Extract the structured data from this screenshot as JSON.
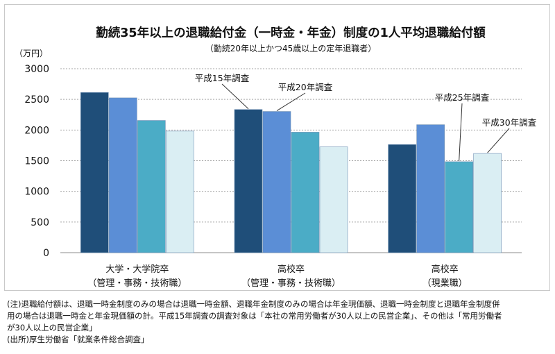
{
  "chart_data": {
    "type": "bar",
    "title": "勤続35年以上の退職給付金（一時金・年金）制度の1人平均退職給付額",
    "subtitle": "（勤続20年以上かつ45歳以上の定年退職者）",
    "unit_label": "（万円）",
    "ylim": [
      0,
      3000
    ],
    "yticks": [
      0,
      500,
      1000,
      1500,
      2000,
      2500,
      3000
    ],
    "grid": true,
    "categories": [
      [
        "大学・大学院卒",
        "（管理・事務・技術職）"
      ],
      [
        "高校卒",
        "（管理・事務・技術職）"
      ],
      [
        "高校卒",
        "（現業職）"
      ]
    ],
    "series": [
      {
        "name": "平成15年調査",
        "color": "#1f4e79",
        "values": [
          2612,
          2335,
          1763
        ]
      },
      {
        "name": "平成20年調査",
        "color": "#5b8ed6",
        "values": [
          2525,
          2303,
          2087
        ]
      },
      {
        "name": "平成25年調査",
        "color": "#4bacc6",
        "values": [
          2156,
          1965,
          1484
        ]
      },
      {
        "name": "平成30年調査",
        "color": "#daeef3",
        "values": [
          1983,
          1726,
          1618
        ]
      }
    ]
  },
  "notes": {
    "line1": "(注)退職給付額は、退職一時金制度のみの場合は退職一時金額、退職年金制度のみの場合は年金現価額、退職一時金制度と退職年金制度併",
    "line2": "用の場合は退職一時金と年金現価額の計。平成15年調査の調査対象は「本社の常用労働者が30人以上の民営企業」、その他は「常用労働者",
    "line3": "が30人以上の民営企業」",
    "source": "(出所)厚生労働省「就業条件総合調査」"
  }
}
